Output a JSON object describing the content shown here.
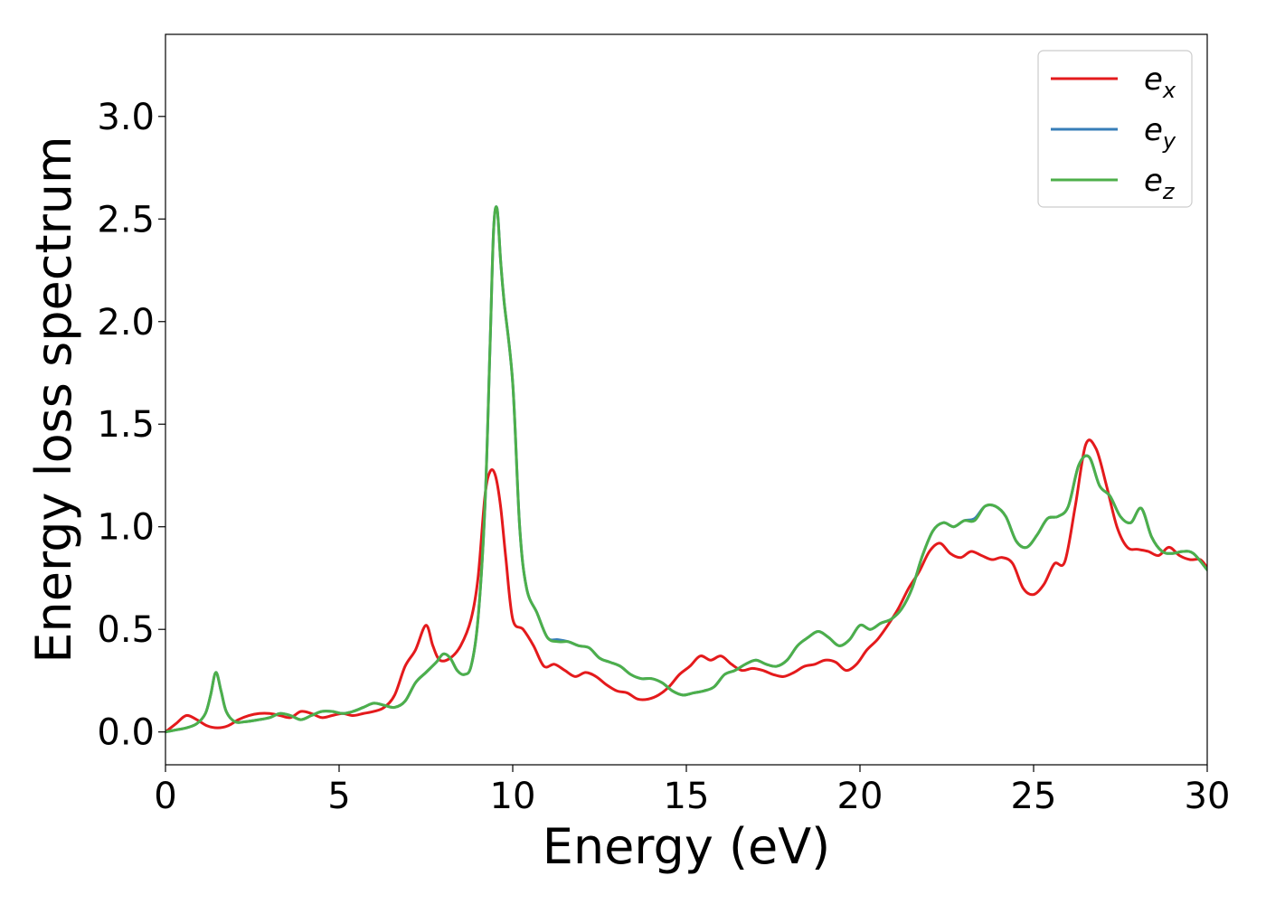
{
  "chart_data": {
    "type": "line",
    "title": "",
    "xlabel": "Energy (eV)",
    "ylabel": "Energy loss spectrum",
    "xlim": [
      0,
      30
    ],
    "ylim": [
      -0.16,
      3.4
    ],
    "xticks": [
      0,
      5,
      10,
      15,
      20,
      25,
      30
    ],
    "yticks": [
      0.0,
      0.5,
      1.0,
      1.5,
      2.0,
      2.5,
      3.0
    ],
    "xtick_labels": [
      "0",
      "5",
      "10",
      "15",
      "20",
      "25",
      "30"
    ],
    "ytick_labels": [
      "0.0",
      "0.5",
      "1.0",
      "1.5",
      "2.0",
      "2.5",
      "3.0"
    ],
    "grid": false,
    "legend_position": "top-right",
    "series": [
      {
        "name": "e",
        "subscript": "x",
        "color": "#e41a1c",
        "x": [
          0,
          0.3,
          0.6,
          0.9,
          1.2,
          1.5,
          1.8,
          2.1,
          2.4,
          2.7,
          3.0,
          3.3,
          3.6,
          3.9,
          4.2,
          4.5,
          4.8,
          5.1,
          5.4,
          5.7,
          6.0,
          6.3,
          6.6,
          6.9,
          7.2,
          7.5,
          7.7,
          7.9,
          8.2,
          8.5,
          8.8,
          9.0,
          9.2,
          9.35,
          9.5,
          9.65,
          9.8,
          10.0,
          10.3,
          10.6,
          10.9,
          11.2,
          11.5,
          11.8,
          12.1,
          12.4,
          12.7,
          13.0,
          13.3,
          13.6,
          13.9,
          14.2,
          14.5,
          14.8,
          15.1,
          15.4,
          15.7,
          16.0,
          16.3,
          16.6,
          16.9,
          17.2,
          17.5,
          17.8,
          18.1,
          18.4,
          18.7,
          19.0,
          19.3,
          19.6,
          19.9,
          20.2,
          20.5,
          20.8,
          21.1,
          21.4,
          21.7,
          22.0,
          22.3,
          22.6,
          22.9,
          23.2,
          23.5,
          23.8,
          24.1,
          24.4,
          24.7,
          25.0,
          25.3,
          25.6,
          25.9,
          26.2,
          26.5,
          26.8,
          27.1,
          27.4,
          27.7,
          28.0,
          28.3,
          28.6,
          28.9,
          29.2,
          29.5,
          29.8,
          30.0
        ],
        "y": [
          0.0,
          0.04,
          0.08,
          0.06,
          0.03,
          0.02,
          0.03,
          0.06,
          0.08,
          0.09,
          0.09,
          0.08,
          0.07,
          0.1,
          0.09,
          0.07,
          0.08,
          0.09,
          0.08,
          0.09,
          0.1,
          0.12,
          0.18,
          0.32,
          0.4,
          0.52,
          0.42,
          0.35,
          0.36,
          0.42,
          0.55,
          0.75,
          1.15,
          1.27,
          1.25,
          1.1,
          0.85,
          0.55,
          0.5,
          0.42,
          0.32,
          0.33,
          0.3,
          0.27,
          0.29,
          0.27,
          0.23,
          0.2,
          0.19,
          0.16,
          0.16,
          0.18,
          0.22,
          0.28,
          0.32,
          0.37,
          0.35,
          0.37,
          0.33,
          0.3,
          0.31,
          0.3,
          0.28,
          0.27,
          0.29,
          0.32,
          0.33,
          0.35,
          0.34,
          0.3,
          0.33,
          0.4,
          0.45,
          0.52,
          0.6,
          0.7,
          0.78,
          0.88,
          0.92,
          0.87,
          0.85,
          0.88,
          0.86,
          0.84,
          0.85,
          0.82,
          0.7,
          0.67,
          0.72,
          0.82,
          0.83,
          1.1,
          1.4,
          1.38,
          1.2,
          1.0,
          0.9,
          0.89,
          0.88,
          0.86,
          0.9,
          0.86,
          0.84,
          0.84,
          0.8
        ]
      },
      {
        "name": "e",
        "subscript": "y",
        "color": "#377eb8",
        "x": [
          0,
          0.3,
          0.6,
          0.9,
          1.15,
          1.3,
          1.45,
          1.6,
          1.75,
          2.0,
          2.3,
          2.7,
          3.0,
          3.3,
          3.6,
          3.9,
          4.2,
          4.5,
          4.8,
          5.1,
          5.4,
          5.7,
          6.0,
          6.3,
          6.6,
          6.9,
          7.2,
          7.5,
          7.8,
          8.0,
          8.2,
          8.4,
          8.6,
          8.8,
          9.0,
          9.2,
          9.35,
          9.45,
          9.55,
          9.65,
          9.75,
          10.0,
          10.2,
          10.4,
          10.7,
          11.0,
          11.3,
          11.6,
          11.9,
          12.2,
          12.5,
          12.8,
          13.1,
          13.4,
          13.7,
          14.0,
          14.3,
          14.6,
          14.9,
          15.2,
          15.5,
          15.8,
          16.1,
          16.4,
          16.7,
          17.0,
          17.3,
          17.6,
          17.9,
          18.2,
          18.5,
          18.8,
          19.1,
          19.4,
          19.7,
          20.0,
          20.3,
          20.6,
          20.9,
          21.2,
          21.5,
          21.8,
          22.1,
          22.4,
          22.7,
          23.0,
          23.3,
          23.6,
          23.9,
          24.2,
          24.5,
          24.8,
          25.1,
          25.4,
          25.7,
          26.0,
          26.3,
          26.6,
          26.9,
          27.2,
          27.5,
          27.8,
          28.1,
          28.4,
          28.7,
          29.0,
          29.3,
          29.6,
          30.0
        ],
        "y": [
          0.0,
          0.01,
          0.02,
          0.04,
          0.09,
          0.18,
          0.29,
          0.2,
          0.1,
          0.05,
          0.05,
          0.06,
          0.07,
          0.09,
          0.08,
          0.06,
          0.08,
          0.1,
          0.1,
          0.09,
          0.1,
          0.12,
          0.14,
          0.13,
          0.12,
          0.15,
          0.24,
          0.29,
          0.34,
          0.38,
          0.36,
          0.3,
          0.28,
          0.32,
          0.55,
          1.1,
          1.9,
          2.45,
          2.55,
          2.3,
          2.1,
          1.7,
          1.0,
          0.7,
          0.58,
          0.46,
          0.45,
          0.44,
          0.42,
          0.41,
          0.36,
          0.34,
          0.32,
          0.28,
          0.26,
          0.26,
          0.24,
          0.2,
          0.18,
          0.19,
          0.2,
          0.22,
          0.28,
          0.3,
          0.33,
          0.35,
          0.33,
          0.32,
          0.35,
          0.42,
          0.46,
          0.49,
          0.46,
          0.42,
          0.45,
          0.52,
          0.5,
          0.53,
          0.55,
          0.6,
          0.7,
          0.86,
          0.98,
          1.02,
          1.0,
          1.03,
          1.04,
          1.1,
          1.1,
          1.05,
          0.93,
          0.9,
          0.96,
          1.04,
          1.05,
          1.1,
          1.3,
          1.34,
          1.2,
          1.15,
          1.05,
          1.02,
          1.09,
          0.95,
          0.88,
          0.87,
          0.88,
          0.87,
          0.79
        ]
      },
      {
        "name": "e",
        "subscript": "z",
        "color": "#4daf4a",
        "x": [
          0,
          0.3,
          0.6,
          0.9,
          1.15,
          1.3,
          1.45,
          1.6,
          1.75,
          2.0,
          2.3,
          2.7,
          3.0,
          3.3,
          3.6,
          3.9,
          4.2,
          4.5,
          4.8,
          5.1,
          5.4,
          5.7,
          6.0,
          6.3,
          6.6,
          6.9,
          7.2,
          7.5,
          7.8,
          8.0,
          8.2,
          8.4,
          8.6,
          8.8,
          9.0,
          9.2,
          9.35,
          9.45,
          9.55,
          9.65,
          9.75,
          10.0,
          10.2,
          10.4,
          10.7,
          11.0,
          11.3,
          11.6,
          11.9,
          12.2,
          12.5,
          12.8,
          13.1,
          13.4,
          13.7,
          14.0,
          14.3,
          14.6,
          14.9,
          15.2,
          15.5,
          15.8,
          16.1,
          16.4,
          16.7,
          17.0,
          17.3,
          17.6,
          17.9,
          18.2,
          18.5,
          18.8,
          19.1,
          19.4,
          19.7,
          20.0,
          20.3,
          20.6,
          20.9,
          21.2,
          21.5,
          21.8,
          22.1,
          22.4,
          22.7,
          23.0,
          23.3,
          23.6,
          23.9,
          24.2,
          24.5,
          24.8,
          25.1,
          25.4,
          25.7,
          26.0,
          26.3,
          26.6,
          26.9,
          27.2,
          27.5,
          27.8,
          28.1,
          28.4,
          28.7,
          29.0,
          29.3,
          29.6,
          30.0
        ],
        "y": [
          0.0,
          0.01,
          0.02,
          0.04,
          0.09,
          0.18,
          0.29,
          0.2,
          0.1,
          0.05,
          0.05,
          0.06,
          0.07,
          0.09,
          0.08,
          0.06,
          0.08,
          0.1,
          0.1,
          0.09,
          0.1,
          0.12,
          0.14,
          0.13,
          0.12,
          0.15,
          0.24,
          0.29,
          0.34,
          0.38,
          0.36,
          0.3,
          0.28,
          0.32,
          0.55,
          1.1,
          1.9,
          2.45,
          2.55,
          2.3,
          2.1,
          1.7,
          1.0,
          0.7,
          0.58,
          0.46,
          0.44,
          0.44,
          0.42,
          0.41,
          0.36,
          0.34,
          0.32,
          0.28,
          0.26,
          0.26,
          0.24,
          0.2,
          0.18,
          0.19,
          0.2,
          0.22,
          0.28,
          0.3,
          0.33,
          0.35,
          0.33,
          0.32,
          0.35,
          0.42,
          0.46,
          0.49,
          0.46,
          0.42,
          0.45,
          0.52,
          0.5,
          0.53,
          0.55,
          0.6,
          0.7,
          0.86,
          0.98,
          1.02,
          1.0,
          1.03,
          1.03,
          1.1,
          1.1,
          1.05,
          0.93,
          0.9,
          0.96,
          1.04,
          1.05,
          1.1,
          1.3,
          1.34,
          1.2,
          1.15,
          1.05,
          1.02,
          1.09,
          0.95,
          0.88,
          0.87,
          0.88,
          0.87,
          0.79
        ]
      }
    ]
  }
}
